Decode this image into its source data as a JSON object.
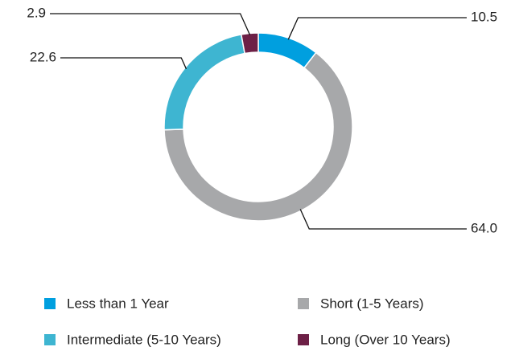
{
  "chart_data": {
    "type": "donut",
    "categories": [
      "Less than 1 Year",
      "Short (1-5 Years)",
      "Intermediate (5-10 Years)",
      "Long (Over 10 Years)"
    ],
    "values": [
      10.5,
      64.0,
      22.6,
      2.9
    ],
    "value_labels": [
      "10.5",
      "64.0",
      "22.6",
      "2.9"
    ],
    "colors": [
      "#009fdf",
      "#a7a8aa",
      "#3eb5d1",
      "#6d2046"
    ]
  }
}
